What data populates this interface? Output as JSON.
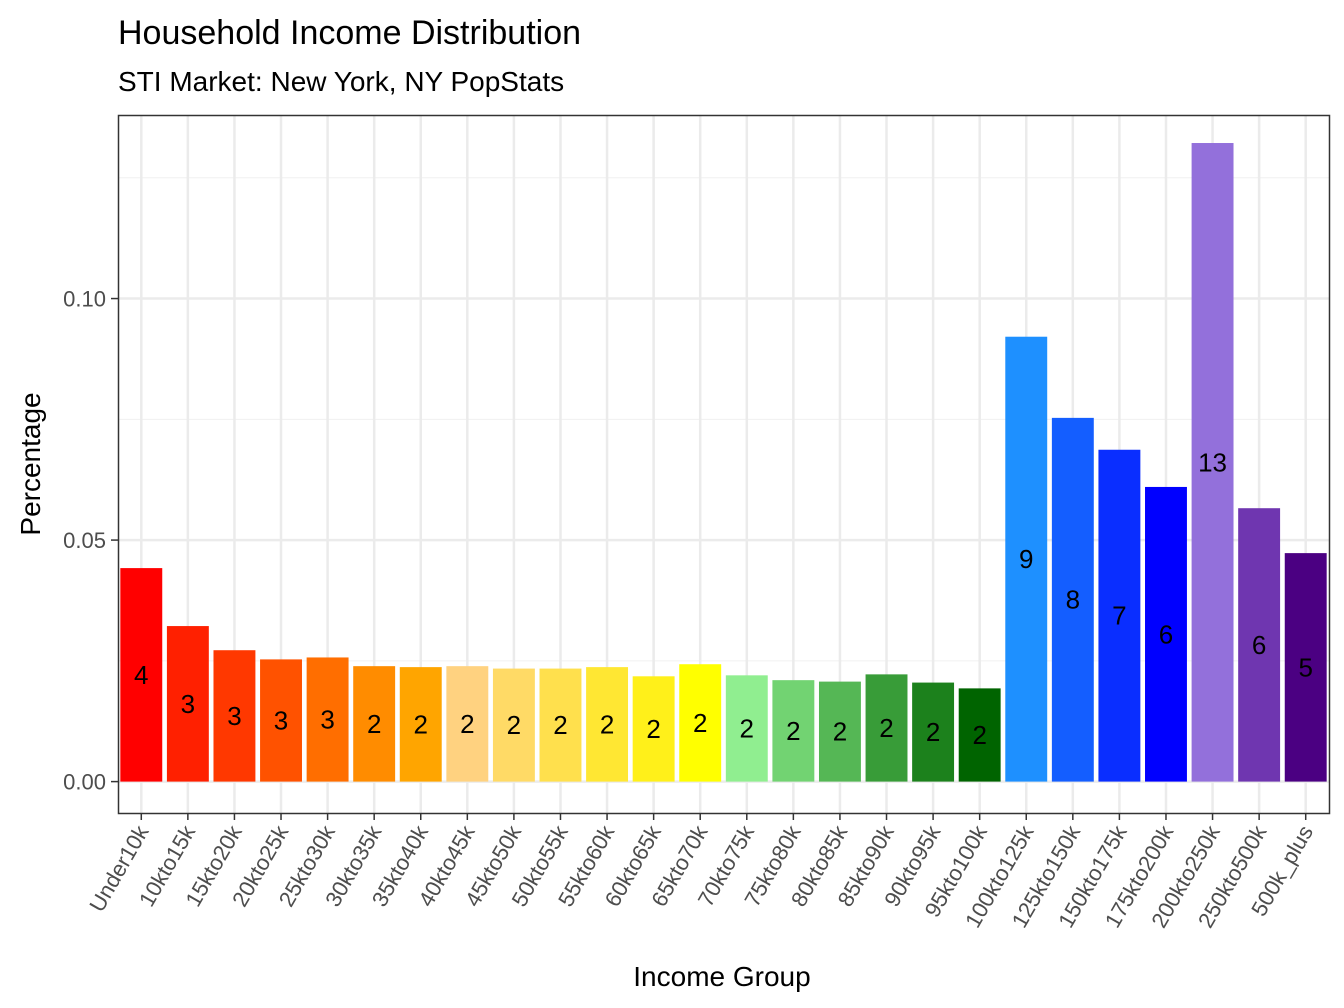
{
  "chart_data": {
    "type": "bar",
    "title": "Household Income Distribution",
    "subtitle": "STI Market: New York, NY PopStats",
    "xlabel": "Income Group",
    "ylabel": "Percentage",
    "ylim": [
      -0.0065,
      0.138
    ],
    "yticks": [
      0.0,
      0.05,
      0.1
    ],
    "ytick_labels": [
      "0.00",
      "0.05",
      "0.10"
    ],
    "grid": true,
    "legend": "none",
    "categories": [
      "Under10k",
      "10kto15k",
      "15kto20k",
      "20kto25k",
      "25kto30k",
      "30kto35k",
      "35kto40k",
      "40kto45k",
      "45kto50k",
      "50kto55k",
      "55kto60k",
      "60kto65k",
      "65kto70k",
      "70kto75k",
      "75kto80k",
      "80kto85k",
      "85kto90k",
      "90kto95k",
      "95kto100k",
      "100kto125k",
      "125kto150k",
      "150kto175k",
      "175kto200k",
      "200kto250k",
      "250kto500k",
      "500k_plus"
    ],
    "values": [
      0.0442,
      0.0322,
      0.0272,
      0.0253,
      0.0257,
      0.0239,
      0.0237,
      0.0239,
      0.0234,
      0.0234,
      0.0237,
      0.0218,
      0.0243,
      0.022,
      0.021,
      0.0207,
      0.0222,
      0.0205,
      0.0193,
      0.0921,
      0.0753,
      0.0687,
      0.061,
      0.1322,
      0.0566,
      0.0473
    ],
    "data_labels": [
      "4",
      "3",
      "3",
      "3",
      "3",
      "2",
      "2",
      "2",
      "2",
      "2",
      "2",
      "2",
      "2",
      "2",
      "2",
      "2",
      "2",
      "2",
      "2",
      "9",
      "8",
      "7",
      "6",
      "13",
      "6",
      "5"
    ],
    "colors": [
      "#FF0000",
      "#FF2000",
      "#FF3800",
      "#FF5200",
      "#FF6E00",
      "#FF8C00",
      "#FFA500",
      "#FFD280",
      "#FFDA66",
      "#FFE04D",
      "#FFE733",
      "#FFF01A",
      "#FFFF00",
      "#90EE90",
      "#72D372",
      "#55B755",
      "#389C38",
      "#1C811C",
      "#006400",
      "#1E90FF",
      "#145EFF",
      "#0A2EFF",
      "#0000FF",
      "#9370DB",
      "#6F36B0",
      "#4B0082"
    ]
  }
}
